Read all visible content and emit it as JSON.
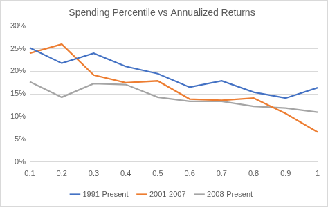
{
  "chart_data": {
    "type": "line",
    "title": "Spending Percentile vs Annualized Returns",
    "categories": [
      "0.1",
      "0.2",
      "0.3",
      "0.4",
      "0.5",
      "0.6",
      "0.7",
      "0.8",
      "0.9",
      "1"
    ],
    "series": [
      {
        "name": "1991-Present",
        "color": "#4472c4",
        "values": [
          25.2,
          21.8,
          24.0,
          21.1,
          19.5,
          16.5,
          17.9,
          15.4,
          14.1,
          16.4
        ]
      },
      {
        "name": "2001-2007",
        "color": "#ed7d31",
        "values": [
          24.0,
          26.0,
          19.2,
          17.5,
          17.9,
          13.9,
          13.6,
          14.1,
          10.7,
          6.6
        ]
      },
      {
        "name": "2008-Present",
        "color": "#a5a5a5",
        "values": [
          17.7,
          14.3,
          17.3,
          17.1,
          14.3,
          13.4,
          13.4,
          12.3,
          11.9,
          11.0
        ]
      }
    ],
    "ylim": [
      0,
      30
    ],
    "yticks": [
      {
        "value": 0,
        "label": "0%"
      },
      {
        "value": 5,
        "label": "5%"
      },
      {
        "value": 10,
        "label": "10%"
      },
      {
        "value": 15,
        "label": "15%"
      },
      {
        "value": 20,
        "label": "20%"
      },
      {
        "value": 25,
        "label": "25%"
      },
      {
        "value": 30,
        "label": "30%"
      }
    ],
    "grid": true,
    "legend": "bottom"
  }
}
